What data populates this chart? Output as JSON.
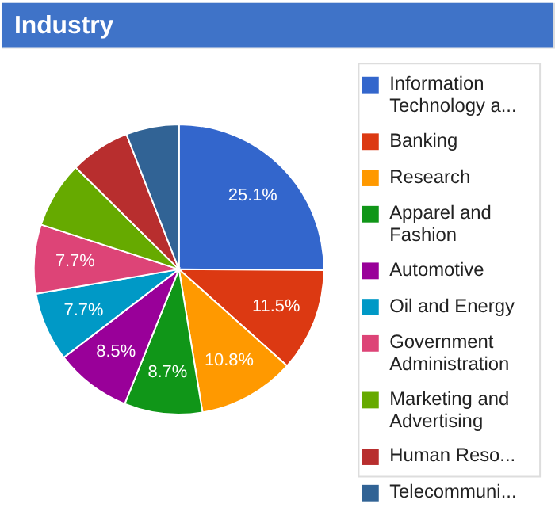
{
  "chart_data": {
    "type": "pie",
    "title": "Industry",
    "categories": [
      "Information Technology a...",
      "Banking",
      "Research",
      "Apparel and Fashion",
      "Automotive",
      "Oil and Energy",
      "Government Administration",
      "Marketing and Advertising",
      "Human Reso...",
      "Telecommuni..."
    ],
    "values": [
      25.1,
      11.5,
      10.8,
      8.7,
      8.5,
      7.7,
      7.7,
      7.4,
      6.7,
      5.9
    ],
    "value_labels": [
      "25.1%",
      "11.5%",
      "10.8%",
      "8.7%",
      "8.5%",
      "7.7%",
      "7.7%",
      null,
      null,
      null
    ],
    "colors": [
      "#3366cc",
      "#dc3912",
      "#ff9900",
      "#109618",
      "#990099",
      "#0099c6",
      "#dd4477",
      "#66aa00",
      "#b82e2e",
      "#316395"
    ],
    "legend": "right"
  }
}
